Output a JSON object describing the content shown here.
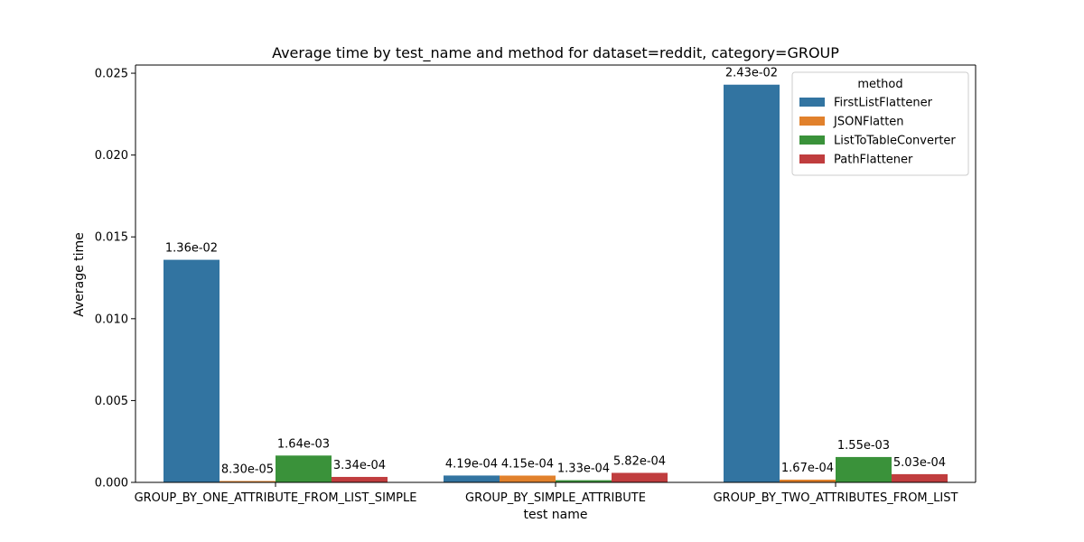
{
  "chart_data": {
    "type": "bar",
    "title": "Average time by test_name and method for dataset=reddit, category=GROUP",
    "xlabel": "test name",
    "ylabel": "Average time",
    "categories": [
      "GROUP_BY_ONE_ATTRIBUTE_FROM_LIST_SIMPLE",
      "GROUP_BY_SIMPLE_ATTRIBUTE",
      "GROUP_BY_TWO_ATTRIBUTES_FROM_LIST"
    ],
    "ylim": [
      0,
      0.0255
    ],
    "yticks": [
      0.0,
      0.005,
      0.01,
      0.015,
      0.02,
      0.025
    ],
    "ytick_labels": [
      "0.000",
      "0.005",
      "0.010",
      "0.015",
      "0.020",
      "0.025"
    ],
    "legend": {
      "title": "method",
      "placement": "top-right"
    },
    "series": [
      {
        "name": "FirstListFlattener",
        "color": "#3274a1",
        "values": [
          0.0136,
          0.000419,
          0.0243
        ],
        "labels": [
          "1.36e-02",
          "4.19e-04",
          "2.43e-02"
        ]
      },
      {
        "name": "JSONFlatten",
        "color": "#e1812c",
        "values": [
          8.3e-05,
          0.000415,
          0.000167
        ],
        "labels": [
          "8.30e-05",
          "4.15e-04",
          "1.67e-04"
        ]
      },
      {
        "name": "ListToTableConverter",
        "color": "#3a923a",
        "values": [
          0.00164,
          0.000133,
          0.00155
        ],
        "labels": [
          "1.64e-03",
          "1.33e-04",
          "1.55e-03"
        ]
      },
      {
        "name": "PathFlattener",
        "color": "#c03d3e",
        "values": [
          0.000334,
          0.000582,
          0.000503
        ],
        "labels": [
          "3.34e-04",
          "5.82e-04",
          "5.03e-04"
        ]
      }
    ]
  }
}
